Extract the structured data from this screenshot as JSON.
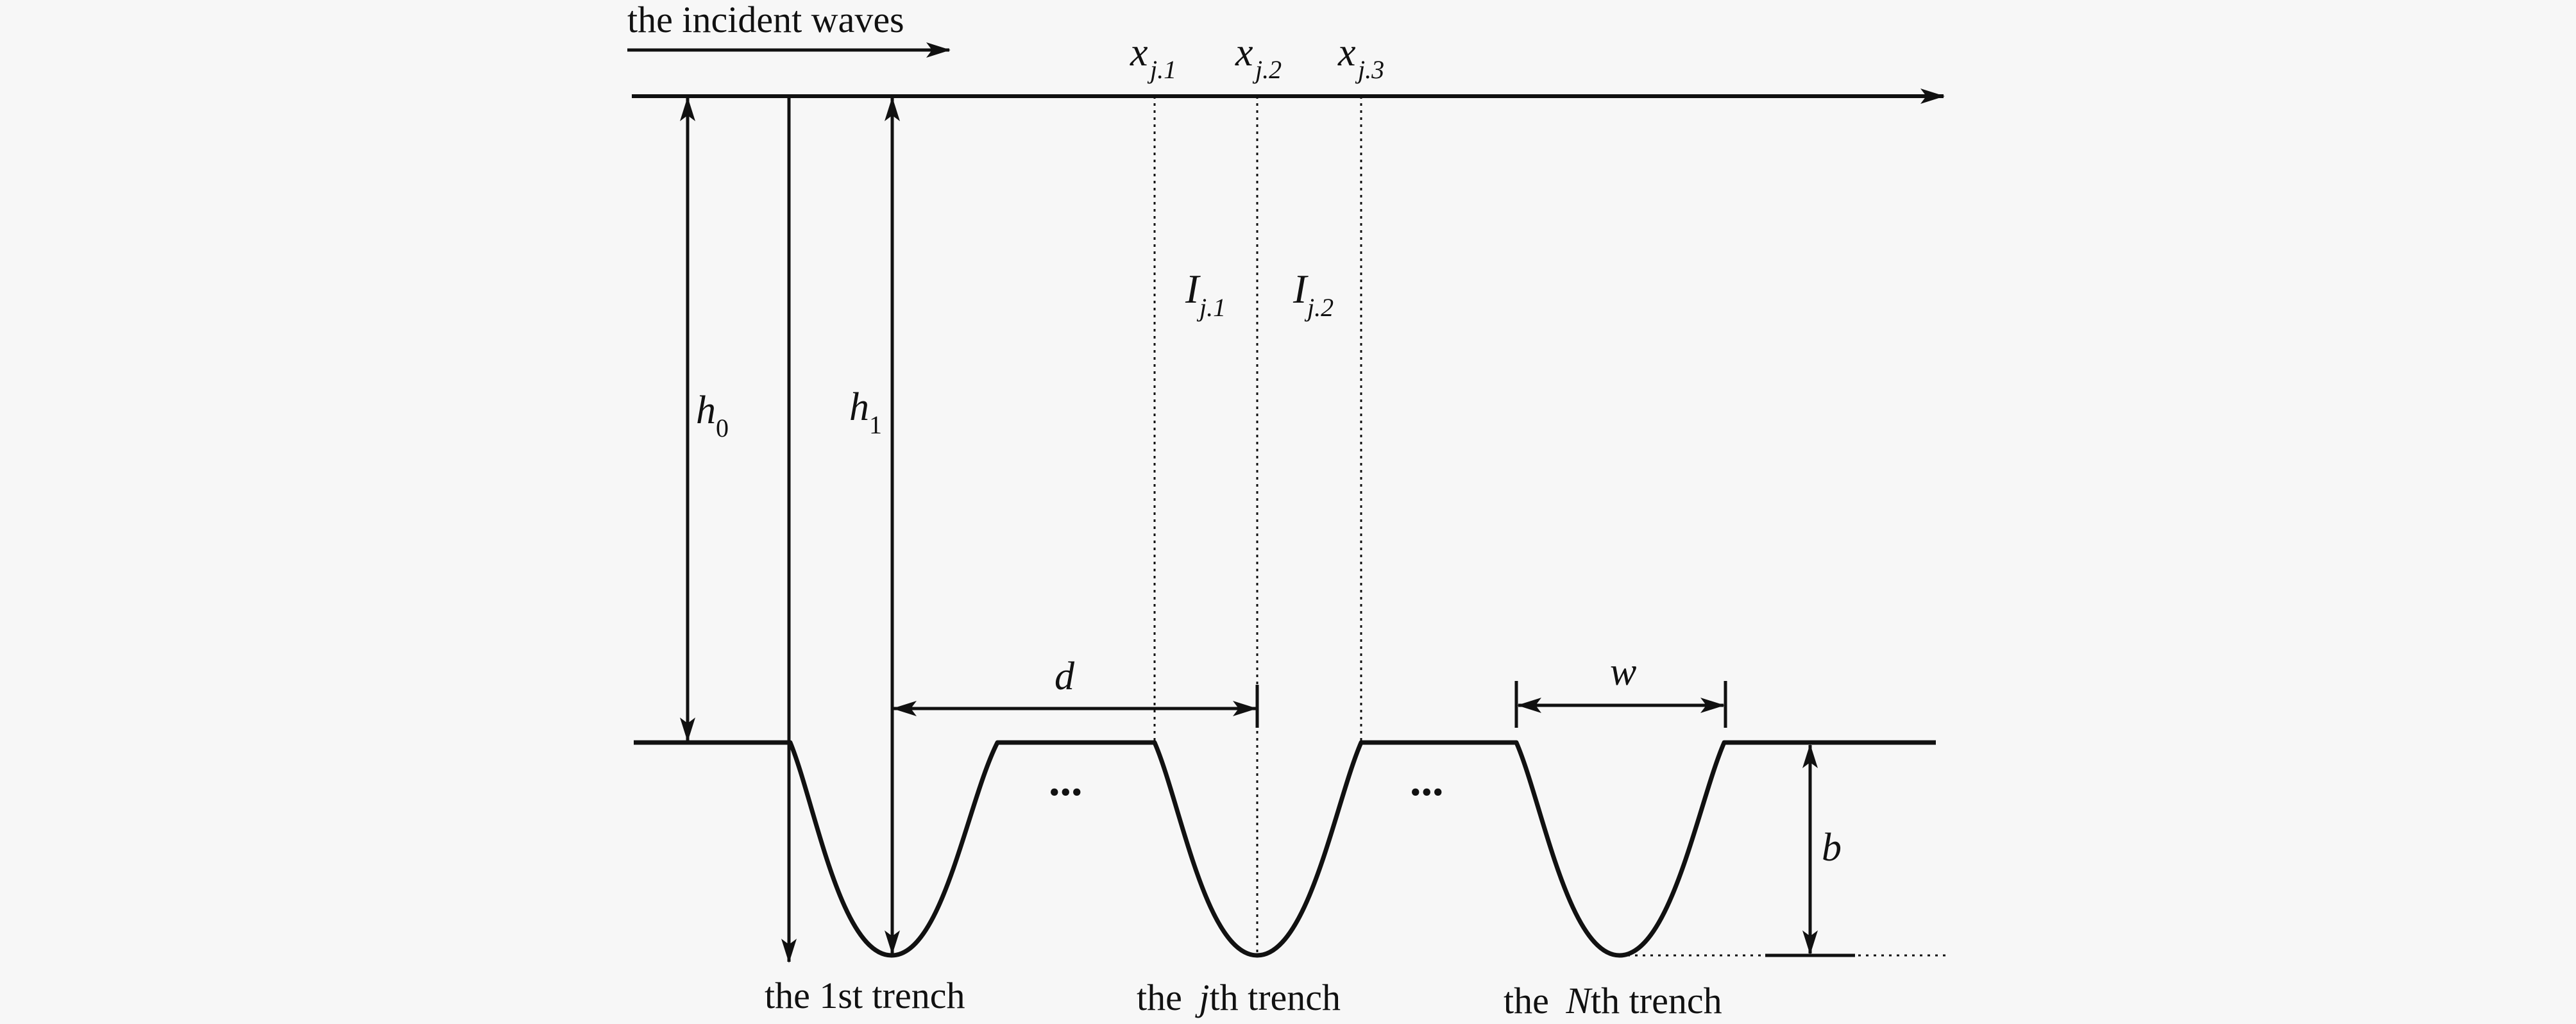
{
  "incident_label": "the incident waves",
  "x_labels": [
    {
      "main": "x",
      "sub": "j.1"
    },
    {
      "main": "x",
      "sub": "j.2"
    },
    {
      "main": "x",
      "sub": "j.3"
    }
  ],
  "interval_labels": [
    {
      "main": "I",
      "sub": "j.1"
    },
    {
      "main": "I",
      "sub": "j.2"
    }
  ],
  "depth_labels": {
    "h0": {
      "main": "h",
      "sub": "0"
    },
    "h1": {
      "main": "h",
      "sub": "1"
    }
  },
  "dimension_labels": {
    "d": "d",
    "w": "w",
    "b": "b"
  },
  "ellipsis": "...",
  "trench_labels": {
    "first": "the 1st trench",
    "j_prefix": "the ",
    "j_italic": "j",
    "j_suffix": "th trench",
    "n_prefix": "the ",
    "n_italic": "N",
    "n_suffix": "th trench"
  }
}
